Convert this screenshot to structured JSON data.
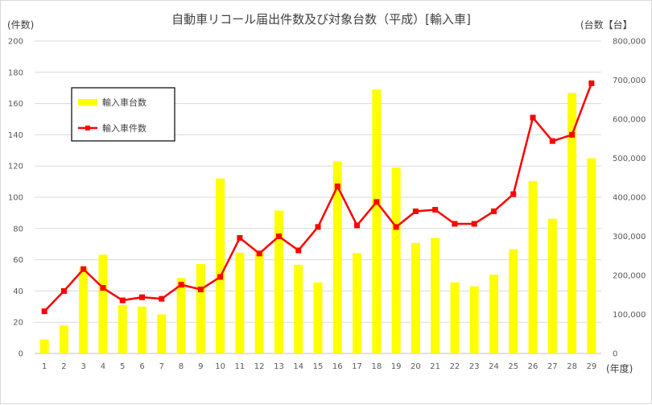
{
  "chart_data": {
    "type": "bar",
    "title": "自動車リコール届出件数及び対象台数（平成）[輸入車]",
    "left_axis_label": "(件数)",
    "right_axis_label": "(台数【台】",
    "x_axis_label": "(年度)",
    "categories": [
      "1",
      "2",
      "3",
      "4",
      "5",
      "6",
      "7",
      "8",
      "9",
      "10",
      "11",
      "12",
      "13",
      "14",
      "15",
      "16",
      "17",
      "18",
      "19",
      "20",
      "21",
      "22",
      "23",
      "24",
      "25",
      "26",
      "27",
      "28",
      "29"
    ],
    "left_ticks": [
      "0",
      "20",
      "40",
      "60",
      "80",
      "100",
      "120",
      "140",
      "160",
      "180",
      "200"
    ],
    "right_ticks": [
      "0",
      "100,000",
      "200,000",
      "300,000",
      "400,000",
      "500,000",
      "600,000",
      "700,000",
      "800,000"
    ],
    "left_ylim": [
      0,
      200
    ],
    "right_ylim": [
      0,
      800000
    ],
    "grid": true,
    "legend_position": "top-left",
    "series": [
      {
        "name": "輸入車台数",
        "kind": "bar",
        "axis": "right",
        "color": "#ffff00",
        "values": [
          36000,
          72000,
          220000,
          253000,
          124000,
          120000,
          100000,
          193000,
          229000,
          448000,
          258000,
          260000,
          366000,
          227000,
          182000,
          492000,
          257000,
          676000,
          476000,
          283000,
          296000,
          182000,
          172000,
          202000,
          267000,
          441000,
          345000,
          667000,
          500000
        ]
      },
      {
        "name": "輸入車件数",
        "kind": "line",
        "axis": "left",
        "color": "#ff0000",
        "values": [
          27,
          40,
          54,
          42,
          34,
          36,
          35,
          44,
          41,
          49,
          74,
          64,
          75,
          66,
          81,
          107,
          82,
          97,
          81,
          91,
          92,
          83,
          83,
          91,
          102,
          151,
          136,
          140,
          173
        ]
      }
    ]
  }
}
